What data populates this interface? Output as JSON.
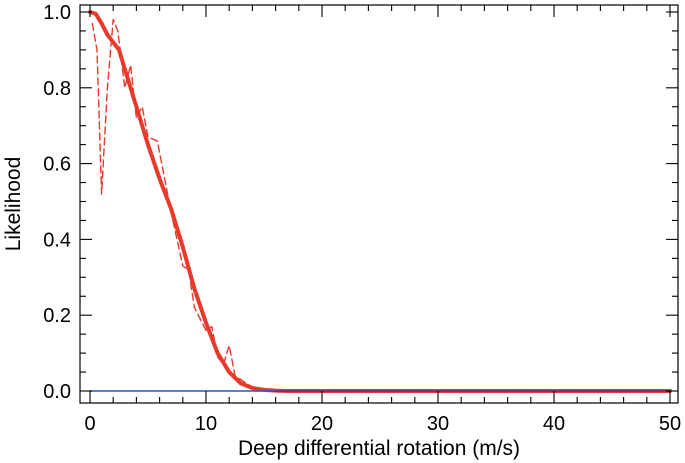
{
  "chart_data": {
    "type": "line",
    "xlabel": "Deep differential rotation (m/s)",
    "ylabel": "Likelihood",
    "xlim": [
      0,
      50
    ],
    "ylim": [
      0,
      1
    ],
    "x_ticks": [
      "0",
      "10",
      "20",
      "30",
      "40",
      "50"
    ],
    "y_ticks": [
      "0.0",
      "0.2",
      "0.4",
      "0.6",
      "0.8",
      "1.0"
    ],
    "grid": false,
    "legend": "none",
    "series": [
      {
        "style": "solid-thick",
        "color": "#e8392b",
        "x": [
          0,
          0.5,
          1,
          1.5,
          2,
          2.5,
          3,
          4,
          5,
          6,
          7,
          8,
          9,
          10,
          11,
          12,
          13,
          14,
          15,
          16,
          17,
          20,
          30,
          40,
          50
        ],
        "y": [
          1.0,
          0.995,
          0.97,
          0.94,
          0.92,
          0.9,
          0.85,
          0.75,
          0.65,
          0.56,
          0.48,
          0.38,
          0.27,
          0.18,
          0.1,
          0.05,
          0.02,
          0.008,
          0.003,
          0.001,
          0.0,
          0.0,
          0.0,
          0.0,
          0.0
        ]
      },
      {
        "style": "dashed",
        "color": "#e8392b",
        "x": [
          0.2,
          0.6,
          1.0,
          1.5,
          2.0,
          2.4,
          3.0,
          3.5,
          4.0,
          4.5,
          5.0,
          5.8,
          6.5,
          7.0,
          7.5,
          8.0,
          8.5,
          9.0,
          9.5,
          10.0,
          10.5,
          11.0,
          11.5,
          12.0,
          12.5,
          13.0,
          14.0,
          15.0,
          16.0,
          17.0,
          20,
          30,
          40,
          50
        ],
        "y": [
          0.97,
          0.9,
          0.52,
          0.8,
          0.98,
          0.95,
          0.8,
          0.86,
          0.72,
          0.75,
          0.67,
          0.66,
          0.55,
          0.47,
          0.4,
          0.33,
          0.32,
          0.22,
          0.19,
          0.16,
          0.17,
          0.09,
          0.07,
          0.12,
          0.04,
          0.03,
          0.01,
          0.004,
          0.001,
          0.0,
          0.0,
          0.0,
          0.0,
          0.0
        ]
      },
      {
        "style": "solid-thin",
        "color": "#2b50d4",
        "x": [
          0,
          50
        ],
        "y": [
          0.0,
          0.0
        ]
      },
      {
        "style": "solid-thin",
        "color": "#7a2a6a",
        "x": [
          16,
          50
        ],
        "y": [
          0.0,
          0.0
        ]
      }
    ]
  }
}
